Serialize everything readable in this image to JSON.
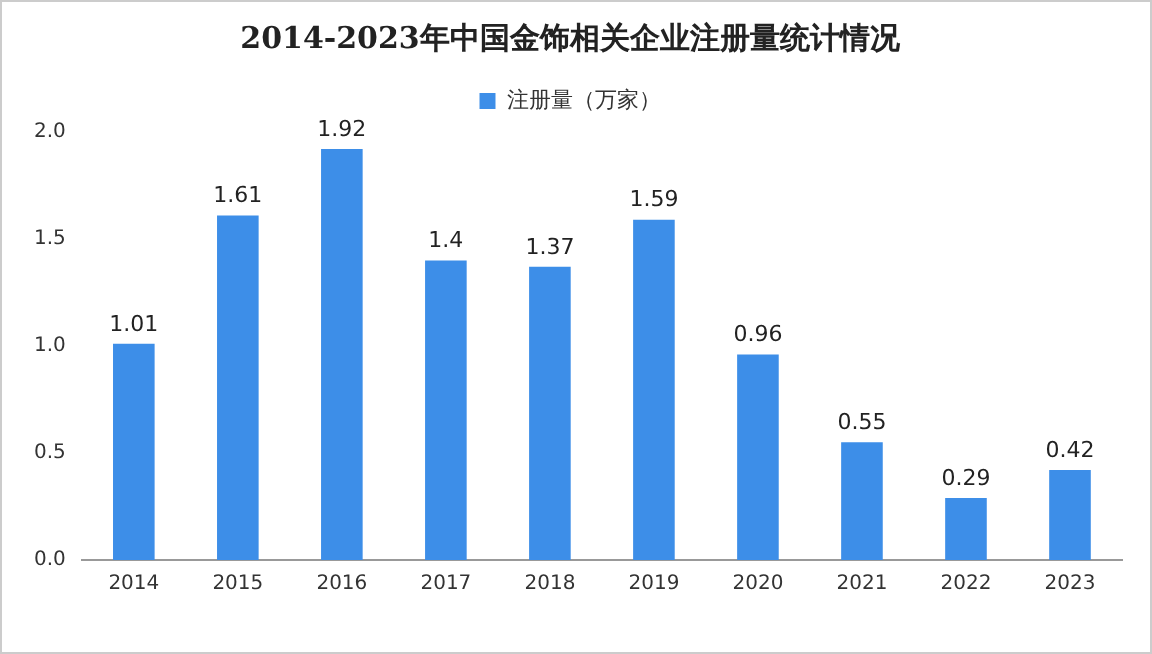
{
  "chart_data": {
    "type": "bar",
    "title": "2014-2023年中国金饰相关企业注册量统计情况",
    "categories": [
      "2014",
      "2015",
      "2016",
      "2017",
      "2018",
      "2019",
      "2020",
      "2021",
      "2022",
      "2023"
    ],
    "series": [
      {
        "name": "注册量（万家）",
        "color": "#3d8ee8",
        "values": [
          1.01,
          1.61,
          1.92,
          1.4,
          1.37,
          1.59,
          0.96,
          0.55,
          0.29,
          0.42
        ]
      }
    ],
    "ylim": [
      0,
      2
    ],
    "yticks": [
      {
        "value": 0,
        "label": "0.0"
      },
      {
        "value": 0.5,
        "label": "0.5"
      },
      {
        "value": 1,
        "label": "1.0"
      },
      {
        "value": 1.5,
        "label": "1.5"
      },
      {
        "value": 2,
        "label": "2.0"
      }
    ],
    "data_labels": true,
    "legend": "top",
    "grid": false
  }
}
